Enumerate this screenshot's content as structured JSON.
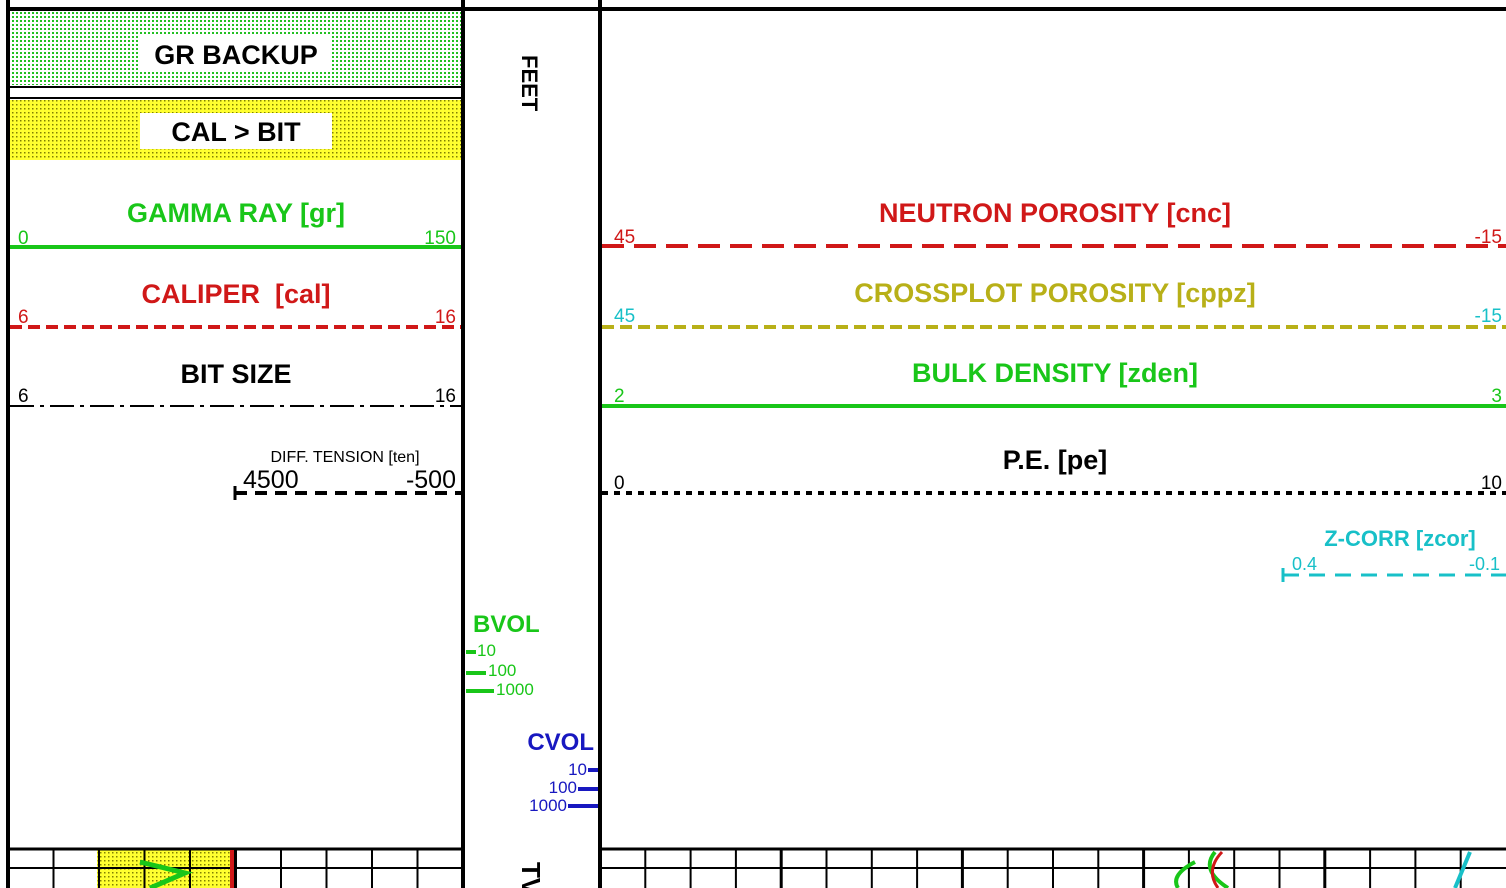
{
  "header": {
    "left_track": {
      "gr_backup": "GR BACKUP",
      "cal_bit": "CAL > BIT",
      "curves": [
        {
          "name": "GAMMA RAY [gr]",
          "left": "0",
          "right": "150"
        },
        {
          "name": "CALIPER  [cal]",
          "left": "6",
          "right": "16"
        },
        {
          "name": "BIT SIZE",
          "left": "6",
          "right": "16"
        }
      ],
      "tension": {
        "name": "DIFF. TENSION [ten]",
        "left": "4500",
        "right": "-500"
      }
    },
    "depth_track": {
      "unit": "FEET",
      "bvol": {
        "name": "BVOL",
        "ticks": [
          "10",
          "100",
          "1000"
        ]
      },
      "cvol": {
        "name": "CVOL",
        "ticks": [
          "10",
          "100",
          "1000"
        ]
      },
      "bottom": "TVD"
    },
    "right_track": {
      "curves": [
        {
          "name": "NEUTRON POROSITY [cnc]",
          "left": "45",
          "right": "-15"
        },
        {
          "name": "CROSSPLOT POROSITY [cppz]",
          "left": "45",
          "right": "-15"
        },
        {
          "name": "BULK DENSITY [zden]",
          "left": "2",
          "right": "3"
        },
        {
          "name": "P.E. [pe]",
          "left": "0",
          "right": "10"
        }
      ],
      "zcorr": {
        "name": "Z-CORR [zcor]",
        "left": "0.4",
        "right": "-0.1"
      }
    }
  }
}
